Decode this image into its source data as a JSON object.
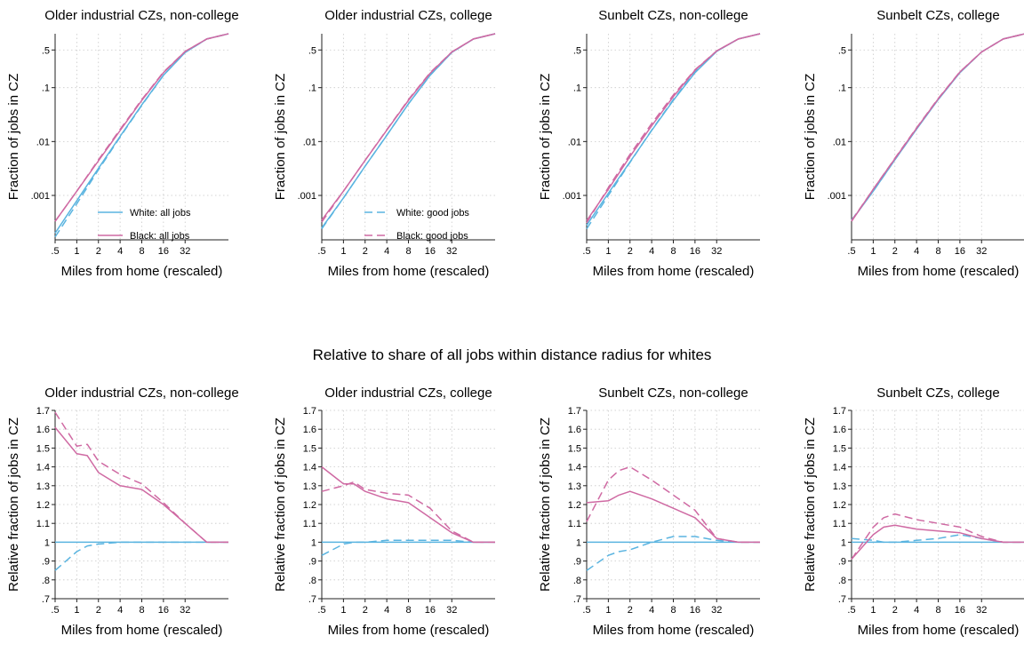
{
  "section_title": "Relative to share of all jobs within distance radius for whites",
  "colors": {
    "white": "#5ab4e0",
    "black": "#cf6aa3",
    "grid": "#c8c8c8",
    "axis": "#222222"
  },
  "legend": {
    "panel0": [
      {
        "label": "White: all jobs",
        "series": "white",
        "style": "solid"
      },
      {
        "label": "Black: all jobs",
        "series": "black",
        "style": "solid"
      }
    ],
    "panel1": [
      {
        "label": "White: good jobs",
        "series": "white",
        "style": "dashed"
      },
      {
        "label": "Black: good jobs",
        "series": "black",
        "style": "dashed"
      }
    ]
  },
  "chart_data": [
    {
      "type": "line",
      "title": "Older industrial CZs, non-college",
      "xlabel": "Miles from home (rescaled)",
      "ylabel": "Fraction of jobs in CZ",
      "xscale": "log2",
      "yscale": "log",
      "xticks": [
        0.5,
        1,
        2,
        4,
        8,
        16,
        32
      ],
      "xtick_labels": [
        ".5",
        "1",
        "2",
        "4",
        "8",
        "16",
        "32"
      ],
      "yticks": [
        0.001,
        0.01,
        0.1,
        0.5
      ],
      "ytick_labels": [
        ".001",
        ".01",
        ".1",
        ".5"
      ],
      "xlim": [
        0.5,
        128
      ],
      "ylim": [
        0.00015,
        1
      ],
      "x": [
        0.5,
        1,
        2,
        4,
        8,
        16,
        32,
        64,
        128
      ],
      "series": [
        {
          "name": "White: all jobs",
          "color_key": "white",
          "dash": false,
          "values": [
            0.0002,
            0.0008,
            0.0032,
            0.0125,
            0.048,
            0.17,
            0.45,
            0.8,
            1.0
          ]
        },
        {
          "name": "White: good jobs",
          "color_key": "white",
          "dash": true,
          "values": [
            0.00017,
            0.0007,
            0.003,
            0.0121,
            0.047,
            0.17,
            0.45,
            0.8,
            1.0
          ]
        },
        {
          "name": "Black: all jobs",
          "color_key": "black",
          "dash": false,
          "values": [
            0.00033,
            0.0012,
            0.0044,
            0.016,
            0.058,
            0.19,
            0.47,
            0.8,
            1.0
          ]
        },
        {
          "name": "Black: good jobs",
          "color_key": "black",
          "dash": true,
          "values": [
            0.00033,
            0.0012,
            0.0046,
            0.0168,
            0.06,
            0.195,
            0.47,
            0.8,
            1.0
          ]
        }
      ]
    },
    {
      "type": "line",
      "title": "Older industrial CZs, college",
      "xlabel": "Miles from home (rescaled)",
      "ylabel": "Fraction of jobs in CZ",
      "xscale": "log2",
      "yscale": "log",
      "xticks": [
        0.5,
        1,
        2,
        4,
        8,
        16,
        32
      ],
      "xtick_labels": [
        ".5",
        "1",
        "2",
        "4",
        "8",
        "16",
        "32"
      ],
      "yticks": [
        0.001,
        0.01,
        0.1,
        0.5
      ],
      "ytick_labels": [
        ".001",
        ".01",
        ".1",
        ".5"
      ],
      "xlim": [
        0.5,
        128
      ],
      "ylim": [
        0.00015,
        1
      ],
      "x": [
        0.5,
        1,
        2,
        4,
        8,
        16,
        32,
        64,
        128
      ],
      "series": [
        {
          "name": "White: all jobs",
          "color_key": "white",
          "dash": false,
          "values": [
            0.00025,
            0.0009,
            0.0035,
            0.013,
            0.05,
            0.17,
            0.45,
            0.8,
            1.0
          ]
        },
        {
          "name": "White: good jobs",
          "color_key": "white",
          "dash": true,
          "values": [
            0.00024,
            0.0009,
            0.0035,
            0.0131,
            0.05,
            0.17,
            0.45,
            0.8,
            1.0
          ]
        },
        {
          "name": "Black: all jobs",
          "color_key": "black",
          "dash": false,
          "values": [
            0.00035,
            0.0012,
            0.0045,
            0.0162,
            0.058,
            0.185,
            0.46,
            0.8,
            1.0
          ]
        },
        {
          "name": "Black: good jobs",
          "color_key": "black",
          "dash": true,
          "values": [
            0.00032,
            0.0012,
            0.0045,
            0.0165,
            0.06,
            0.19,
            0.46,
            0.8,
            1.0
          ]
        }
      ]
    },
    {
      "type": "line",
      "title": "Sunbelt CZs, non-college",
      "xlabel": "Miles from home (rescaled)",
      "ylabel": "Fraction of jobs in CZ",
      "xscale": "log2",
      "yscale": "log",
      "xticks": [
        0.5,
        1,
        2,
        4,
        8,
        16,
        32
      ],
      "xtick_labels": [
        ".5",
        "1",
        "2",
        "4",
        "8",
        "16",
        "32"
      ],
      "yticks": [
        0.001,
        0.01,
        0.1,
        0.5
      ],
      "ytick_labels": [
        ".001",
        ".01",
        ".1",
        ".5"
      ],
      "xlim": [
        0.5,
        128
      ],
      "ylim": [
        0.00015,
        1
      ],
      "x": [
        0.5,
        1,
        2,
        4,
        8,
        16,
        32,
        64,
        128
      ],
      "series": [
        {
          "name": "White: all jobs",
          "color_key": "white",
          "dash": false,
          "values": [
            0.00028,
            0.0011,
            0.0042,
            0.016,
            0.058,
            0.19,
            0.47,
            0.8,
            1.0
          ]
        },
        {
          "name": "White: good jobs",
          "color_key": "white",
          "dash": true,
          "values": [
            0.00024,
            0.001,
            0.0041,
            0.0163,
            0.06,
            0.197,
            0.48,
            0.8,
            1.0
          ]
        },
        {
          "name": "Black: all jobs",
          "color_key": "black",
          "dash": false,
          "values": [
            0.00034,
            0.0013,
            0.0053,
            0.0195,
            0.068,
            0.21,
            0.48,
            0.8,
            1.0
          ]
        },
        {
          "name": "Black: good jobs",
          "color_key": "black",
          "dash": true,
          "values": [
            0.00031,
            0.0014,
            0.0058,
            0.0215,
            0.073,
            0.215,
            0.48,
            0.8,
            1.0
          ]
        }
      ]
    },
    {
      "type": "line",
      "title": "Sunbelt CZs, college",
      "xlabel": "Miles from home (rescaled)",
      "ylabel": "Fraction of jobs in CZ",
      "xscale": "log2",
      "yscale": "log",
      "xticks": [
        0.5,
        1,
        2,
        4,
        8,
        16,
        32
      ],
      "xtick_labels": [
        ".5",
        "1",
        "2",
        "4",
        "8",
        "16",
        "32"
      ],
      "yticks": [
        0.001,
        0.01,
        0.1,
        0.5
      ],
      "ytick_labels": [
        ".001",
        ".01",
        ".1",
        ".5"
      ],
      "xlim": [
        0.5,
        128
      ],
      "ylim": [
        0.00015,
        1
      ],
      "x": [
        0.5,
        1,
        2,
        4,
        8,
        16,
        32,
        64,
        128
      ],
      "series": [
        {
          "name": "White: all jobs",
          "color_key": "white",
          "dash": false,
          "values": [
            0.00034,
            0.0012,
            0.0046,
            0.017,
            0.06,
            0.19,
            0.46,
            0.8,
            1.0
          ]
        },
        {
          "name": "White: good jobs",
          "color_key": "white",
          "dash": true,
          "values": [
            0.00035,
            0.0012,
            0.0046,
            0.0172,
            0.061,
            0.192,
            0.46,
            0.8,
            1.0
          ]
        },
        {
          "name": "Black: all jobs",
          "color_key": "black",
          "dash": false,
          "values": [
            0.00033,
            0.0013,
            0.0048,
            0.0176,
            0.062,
            0.195,
            0.46,
            0.8,
            1.0
          ]
        },
        {
          "name": "Black: good jobs",
          "color_key": "black",
          "dash": true,
          "values": [
            0.00034,
            0.0013,
            0.0049,
            0.018,
            0.063,
            0.197,
            0.46,
            0.8,
            1.0
          ]
        }
      ]
    },
    {
      "type": "line",
      "title": "Older industrial CZs, non-college",
      "xlabel": "Miles from home (rescaled)",
      "ylabel": "Relative fraction of jobs in CZ",
      "xscale": "log2",
      "yscale": "linear",
      "xticks": [
        0.5,
        1,
        2,
        4,
        8,
        16,
        32
      ],
      "xtick_labels": [
        ".5",
        "1",
        "2",
        "4",
        "8",
        "16",
        "32"
      ],
      "yticks": [
        0.7,
        0.8,
        0.9,
        1.0,
        1.1,
        1.2,
        1.3,
        1.4,
        1.5,
        1.6,
        1.7
      ],
      "ytick_labels": [
        ".7",
        ".8",
        ".9",
        "1",
        "1.1",
        "1.2",
        "1.3",
        "1.4",
        "1.5",
        "1.6",
        "1.7"
      ],
      "xlim": [
        0.5,
        128
      ],
      "ylim": [
        0.7,
        1.7
      ],
      "x": [
        0.5,
        1,
        1.4,
        2,
        4,
        8,
        16,
        32,
        64,
        128
      ],
      "series": [
        {
          "name": "White: all jobs",
          "color_key": "white",
          "dash": false,
          "values": [
            1.0,
            1.0,
            1.0,
            1.0,
            1.0,
            1.0,
            1.0,
            1.0,
            1.0,
            1.0
          ]
        },
        {
          "name": "White: good jobs",
          "color_key": "white",
          "dash": true,
          "values": [
            0.85,
            0.95,
            0.98,
            0.99,
            1.0,
            1.0,
            1.0,
            1.0,
            1.0,
            1.0
          ]
        },
        {
          "name": "Black: all jobs",
          "color_key": "black",
          "dash": false,
          "values": [
            1.61,
            1.47,
            1.46,
            1.37,
            1.3,
            1.28,
            1.2,
            1.1,
            1.0,
            1.0
          ]
        },
        {
          "name": "Black: good jobs",
          "color_key": "black",
          "dash": true,
          "values": [
            1.69,
            1.51,
            1.52,
            1.43,
            1.36,
            1.31,
            1.21,
            1.1,
            1.0,
            1.0
          ]
        }
      ]
    },
    {
      "type": "line",
      "title": "Older industrial CZs, college",
      "xlabel": "Miles from home (rescaled)",
      "ylabel": "Relative fraction of jobs in CZ",
      "xscale": "log2",
      "yscale": "linear",
      "xticks": [
        0.5,
        1,
        2,
        4,
        8,
        16,
        32
      ],
      "xtick_labels": [
        ".5",
        "1",
        "2",
        "4",
        "8",
        "16",
        "32"
      ],
      "yticks": [
        0.7,
        0.8,
        0.9,
        1.0,
        1.1,
        1.2,
        1.3,
        1.4,
        1.5,
        1.6,
        1.7
      ],
      "ytick_labels": [
        ".7",
        ".8",
        ".9",
        "1",
        "1.1",
        "1.2",
        "1.3",
        "1.4",
        "1.5",
        "1.6",
        "1.7"
      ],
      "xlim": [
        0.5,
        128
      ],
      "ylim": [
        0.7,
        1.7
      ],
      "x": [
        0.5,
        1,
        1.4,
        2,
        4,
        8,
        16,
        32,
        64,
        128
      ],
      "series": [
        {
          "name": "White: all jobs",
          "color_key": "white",
          "dash": false,
          "values": [
            1.0,
            1.0,
            1.0,
            1.0,
            1.0,
            1.0,
            1.0,
            1.0,
            1.0,
            1.0
          ]
        },
        {
          "name": "White: good jobs",
          "color_key": "white",
          "dash": true,
          "values": [
            0.93,
            0.99,
            1.0,
            1.0,
            1.01,
            1.01,
            1.01,
            1.01,
            1.0,
            1.0
          ]
        },
        {
          "name": "Black: all jobs",
          "color_key": "black",
          "dash": false,
          "values": [
            1.4,
            1.31,
            1.31,
            1.27,
            1.23,
            1.21,
            1.13,
            1.05,
            1.0,
            1.0
          ]
        },
        {
          "name": "Black: good jobs",
          "color_key": "black",
          "dash": true,
          "values": [
            1.27,
            1.3,
            1.32,
            1.28,
            1.26,
            1.25,
            1.18,
            1.06,
            1.0,
            1.0
          ]
        }
      ]
    },
    {
      "type": "line",
      "title": "Sunbelt CZs, non-college",
      "xlabel": "Miles from home (rescaled)",
      "ylabel": "Relative fraction of jobs in CZ",
      "xscale": "log2",
      "yscale": "linear",
      "xticks": [
        0.5,
        1,
        2,
        4,
        8,
        16,
        32
      ],
      "xtick_labels": [
        ".5",
        "1",
        "2",
        "4",
        "8",
        "16",
        "32"
      ],
      "yticks": [
        0.7,
        0.8,
        0.9,
        1.0,
        1.1,
        1.2,
        1.3,
        1.4,
        1.5,
        1.6,
        1.7
      ],
      "ytick_labels": [
        ".7",
        ".8",
        ".9",
        "1",
        "1.1",
        "1.2",
        "1.3",
        "1.4",
        "1.5",
        "1.6",
        "1.7"
      ],
      "xlim": [
        0.5,
        128
      ],
      "ylim": [
        0.7,
        1.7
      ],
      "x": [
        0.5,
        1,
        1.4,
        2,
        4,
        8,
        16,
        32,
        64,
        128
      ],
      "series": [
        {
          "name": "White: all jobs",
          "color_key": "white",
          "dash": false,
          "values": [
            1.0,
            1.0,
            1.0,
            1.0,
            1.0,
            1.0,
            1.0,
            1.0,
            1.0,
            1.0
          ]
        },
        {
          "name": "White: good jobs",
          "color_key": "white",
          "dash": true,
          "values": [
            0.85,
            0.93,
            0.95,
            0.96,
            1.0,
            1.03,
            1.03,
            1.01,
            1.0,
            1.0
          ]
        },
        {
          "name": "Black: all jobs",
          "color_key": "black",
          "dash": false,
          "values": [
            1.21,
            1.22,
            1.25,
            1.27,
            1.23,
            1.18,
            1.13,
            1.02,
            1.0,
            1.0
          ]
        },
        {
          "name": "Black: good jobs",
          "color_key": "black",
          "dash": true,
          "values": [
            1.11,
            1.33,
            1.38,
            1.4,
            1.33,
            1.25,
            1.17,
            1.02,
            1.0,
            1.0
          ]
        }
      ]
    },
    {
      "type": "line",
      "title": "Sunbelt CZs, college",
      "xlabel": "Miles from home (rescaled)",
      "ylabel": "Relative fraction of jobs in CZ",
      "xscale": "log2",
      "yscale": "linear",
      "xticks": [
        0.5,
        1,
        2,
        4,
        8,
        16,
        32
      ],
      "xtick_labels": [
        ".5",
        "1",
        "2",
        "4",
        "8",
        "16",
        "32"
      ],
      "yticks": [
        0.7,
        0.8,
        0.9,
        1.0,
        1.1,
        1.2,
        1.3,
        1.4,
        1.5,
        1.6,
        1.7
      ],
      "ytick_labels": [
        ".7",
        ".8",
        ".9",
        "1",
        "1.1",
        "1.2",
        "1.3",
        "1.4",
        "1.5",
        "1.6",
        "1.7"
      ],
      "xlim": [
        0.5,
        128
      ],
      "ylim": [
        0.7,
        1.7
      ],
      "x": [
        0.5,
        1,
        1.4,
        2,
        4,
        8,
        16,
        32,
        64,
        128
      ],
      "series": [
        {
          "name": "White: all jobs",
          "color_key": "white",
          "dash": false,
          "values": [
            1.0,
            1.0,
            1.0,
            1.0,
            1.0,
            1.0,
            1.0,
            1.0,
            1.0,
            1.0
          ]
        },
        {
          "name": "White: good jobs",
          "color_key": "white",
          "dash": true,
          "values": [
            1.02,
            1.01,
            1.0,
            1.0,
            1.01,
            1.02,
            1.04,
            1.02,
            1.0,
            1.0
          ]
        },
        {
          "name": "Black: all jobs",
          "color_key": "black",
          "dash": false,
          "values": [
            0.91,
            1.04,
            1.08,
            1.09,
            1.07,
            1.06,
            1.05,
            1.02,
            1.0,
            1.0
          ]
        },
        {
          "name": "Black: good jobs",
          "color_key": "black",
          "dash": true,
          "values": [
            0.91,
            1.08,
            1.13,
            1.15,
            1.12,
            1.1,
            1.08,
            1.03,
            1.0,
            1.0
          ]
        }
      ]
    }
  ]
}
